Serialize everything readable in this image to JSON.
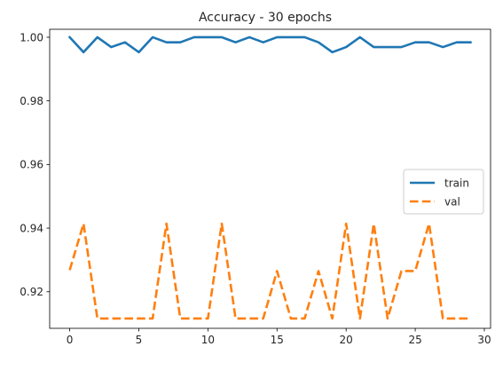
{
  "chart_data": {
    "type": "line",
    "title": "Accuracy - 30 epochs",
    "xlabel": "",
    "ylabel": "",
    "xlim": [
      -1.45,
      30.45
    ],
    "ylim": [
      0.9085,
      1.0025
    ],
    "x_ticks": [
      0,
      5,
      10,
      15,
      20,
      25,
      30
    ],
    "y_ticks": [
      0.92,
      0.94,
      0.96,
      0.98,
      1.0
    ],
    "y_tick_labels": [
      "0.92",
      "0.94",
      "0.96",
      "0.98",
      "1.00"
    ],
    "grid": false,
    "legend_position": "center-right",
    "x": [
      0,
      1,
      2,
      3,
      4,
      5,
      6,
      7,
      8,
      9,
      10,
      11,
      12,
      13,
      14,
      15,
      16,
      17,
      18,
      19,
      20,
      21,
      22,
      23,
      24,
      25,
      26,
      27,
      28,
      29
    ],
    "series": [
      {
        "name": "train",
        "color": "#1f77b4",
        "style": "solid",
        "values": [
          1.0,
          0.9953,
          1.0,
          0.9969,
          0.9984,
          0.9953,
          1.0,
          0.9984,
          0.9984,
          1.0,
          1.0,
          1.0,
          0.9984,
          1.0,
          0.9984,
          1.0,
          1.0,
          1.0,
          0.9984,
          0.9953,
          0.9969,
          1.0,
          0.9969,
          0.9969,
          0.9969,
          0.9984,
          0.9984,
          0.9969,
          0.9984,
          0.9984
        ]
      },
      {
        "name": "val",
        "color": "#ff7f0e",
        "style": "dashed",
        "values": [
          0.9268,
          0.9414,
          0.9116,
          0.9116,
          0.9116,
          0.9116,
          0.9116,
          0.9414,
          0.9116,
          0.9116,
          0.9116,
          0.9414,
          0.9116,
          0.9116,
          0.9116,
          0.9265,
          0.9116,
          0.9116,
          0.9265,
          0.9116,
          0.9414,
          0.9116,
          0.9414,
          0.9116,
          0.9265,
          0.9265,
          0.9414,
          0.9116,
          0.9116,
          0.9116
        ]
      }
    ]
  }
}
